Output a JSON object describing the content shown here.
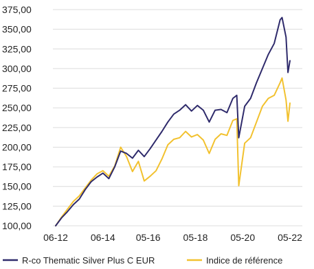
{
  "chart_data": {
    "type": "line",
    "title": "",
    "xlabel": "",
    "ylabel": "",
    "ylim": [
      100,
      375
    ],
    "yticks": [
      "375,00",
      "350,00",
      "325,00",
      "300,00",
      "275,00",
      "250,00",
      "225,00",
      "200,00",
      "175,00",
      "150,00",
      "125,00",
      "100,00"
    ],
    "xticks": [
      "06-12",
      "06-14",
      "05-16",
      "05-18",
      "05-20",
      "05-22"
    ],
    "grid": "horizontal",
    "legend_position": "bottom",
    "series": [
      {
        "name": "R-co Thematic Silver Plus C EUR",
        "color": "#2e2a6b",
        "points": [
          [
            "2012-06",
            100
          ],
          [
            "2012-09",
            110
          ],
          [
            "2012-12",
            118
          ],
          [
            "2013-03",
            127
          ],
          [
            "2013-06",
            134
          ],
          [
            "2013-09",
            146
          ],
          [
            "2013-12",
            156
          ],
          [
            "2014-03",
            162
          ],
          [
            "2014-06",
            167
          ],
          [
            "2014-09",
            160
          ],
          [
            "2014-12",
            175
          ],
          [
            "2015-03",
            195
          ],
          [
            "2015-06",
            192
          ],
          [
            "2015-09",
            186
          ],
          [
            "2015-12",
            196
          ],
          [
            "2016-03",
            188
          ],
          [
            "2016-06",
            198
          ],
          [
            "2016-09",
            209
          ],
          [
            "2016-12",
            220
          ],
          [
            "2017-03",
            232
          ],
          [
            "2017-06",
            242
          ],
          [
            "2017-09",
            247
          ],
          [
            "2017-12",
            254
          ],
          [
            "2018-03",
            246
          ],
          [
            "2018-06",
            253
          ],
          [
            "2018-09",
            247
          ],
          [
            "2018-12",
            232
          ],
          [
            "2019-03",
            247
          ],
          [
            "2019-06",
            248
          ],
          [
            "2019-09",
            244
          ],
          [
            "2019-12",
            262
          ],
          [
            "2020-02",
            266
          ],
          [
            "2020-03",
            212
          ],
          [
            "2020-06",
            252
          ],
          [
            "2020-09",
            262
          ],
          [
            "2020-12",
            282
          ],
          [
            "2021-03",
            300
          ],
          [
            "2021-06",
            318
          ],
          [
            "2021-09",
            332
          ],
          [
            "2021-12",
            362
          ],
          [
            "2022-01",
            365
          ],
          [
            "2022-03",
            340
          ],
          [
            "2022-04",
            295
          ],
          [
            "2022-05",
            310
          ]
        ]
      },
      {
        "name": "Indice de référence",
        "color": "#f2c12e",
        "points": [
          [
            "2012-06",
            100
          ],
          [
            "2012-09",
            111
          ],
          [
            "2012-12",
            121
          ],
          [
            "2013-03",
            131
          ],
          [
            "2013-06",
            138
          ],
          [
            "2013-09",
            148
          ],
          [
            "2013-12",
            158
          ],
          [
            "2014-03",
            166
          ],
          [
            "2014-06",
            170
          ],
          [
            "2014-09",
            163
          ],
          [
            "2014-12",
            176
          ],
          [
            "2015-03",
            200
          ],
          [
            "2015-06",
            188
          ],
          [
            "2015-09",
            169
          ],
          [
            "2015-12",
            182
          ],
          [
            "2016-03",
            157
          ],
          [
            "2016-06",
            163
          ],
          [
            "2016-09",
            170
          ],
          [
            "2016-12",
            185
          ],
          [
            "2017-03",
            203
          ],
          [
            "2017-06",
            210
          ],
          [
            "2017-09",
            212
          ],
          [
            "2017-12",
            220
          ],
          [
            "2018-03",
            213
          ],
          [
            "2018-06",
            216
          ],
          [
            "2018-09",
            209
          ],
          [
            "2018-12",
            192
          ],
          [
            "2019-03",
            210
          ],
          [
            "2019-06",
            217
          ],
          [
            "2019-09",
            215
          ],
          [
            "2019-12",
            234
          ],
          [
            "2020-02",
            236
          ],
          [
            "2020-03",
            151
          ],
          [
            "2020-06",
            205
          ],
          [
            "2020-09",
            212
          ],
          [
            "2020-12",
            232
          ],
          [
            "2021-03",
            252
          ],
          [
            "2021-06",
            262
          ],
          [
            "2021-09",
            266
          ],
          [
            "2021-12",
            282
          ],
          [
            "2022-01",
            288
          ],
          [
            "2022-03",
            260
          ],
          [
            "2022-04",
            233
          ],
          [
            "2022-05",
            256
          ]
        ]
      }
    ]
  }
}
